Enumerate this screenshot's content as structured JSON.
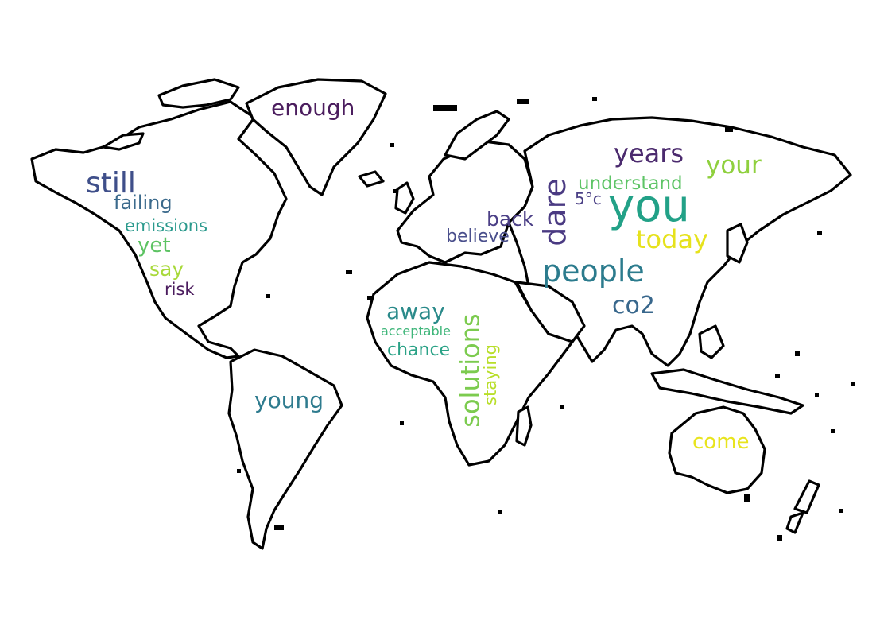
{
  "words": [
    {
      "id": "you",
      "text": "you",
      "color": "#22a187"
    },
    {
      "id": "people",
      "text": "people",
      "color": "#2b7b8d"
    },
    {
      "id": "dare",
      "text": "dare",
      "color": "#4a3a82"
    },
    {
      "id": "still",
      "text": "still",
      "color": "#3f4f8a"
    },
    {
      "id": "solutions",
      "text": "solutions",
      "color": "#7ccb4f"
    },
    {
      "id": "years",
      "text": "years",
      "color": "#4b2a6e"
    },
    {
      "id": "today",
      "text": "today",
      "color": "#e6e21c"
    },
    {
      "id": "your",
      "text": "your",
      "color": "#8fd03e"
    },
    {
      "id": "enough",
      "text": "enough",
      "color": "#4b1d5e"
    },
    {
      "id": "young",
      "text": "young",
      "color": "#2e7b8e"
    },
    {
      "id": "co2",
      "text": "co2",
      "color": "#38678c"
    },
    {
      "id": "away",
      "text": "away",
      "color": "#2a8a8a"
    },
    {
      "id": "come",
      "text": "come",
      "color": "#e8e41e"
    },
    {
      "id": "failing",
      "text": "failing",
      "color": "#3b6a8c"
    },
    {
      "id": "understand",
      "text": "understand",
      "color": "#5ec466"
    },
    {
      "id": "back",
      "text": "back",
      "color": "#4b3f86"
    },
    {
      "id": "yet",
      "text": "yet",
      "color": "#5dc363"
    },
    {
      "id": "say",
      "text": "say",
      "color": "#a8d93a"
    },
    {
      "id": "emissions",
      "text": "emissions",
      "color": "#2b9a8d"
    },
    {
      "id": "believe",
      "text": "believe",
      "color": "#4a4f8c"
    },
    {
      "id": "chance",
      "text": "chance",
      "color": "#2aa286"
    },
    {
      "id": "staying",
      "text": "staying",
      "color": "#b8de29"
    },
    {
      "id": "risk",
      "text": "risk",
      "color": "#4b1c5e"
    },
    {
      "id": "5c",
      "text": "5°c",
      "color": "#4a3f85"
    },
    {
      "id": "acceptable",
      "text": "acceptable",
      "color": "#3fb67a"
    }
  ]
}
